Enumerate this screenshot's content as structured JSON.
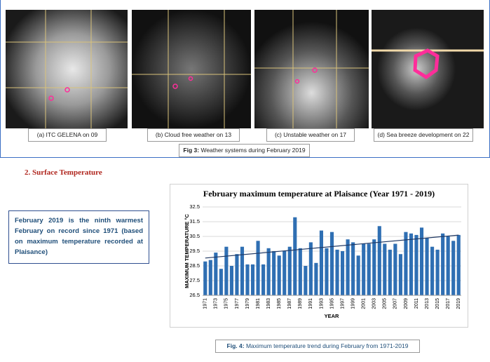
{
  "figure3": {
    "panels": [
      {
        "caption": "(a) ITC GELENA on 09"
      },
      {
        "caption": "(b) Cloud free weather on 13"
      },
      {
        "caption": "(c) Unstable weather on 17"
      },
      {
        "caption": "(d) Sea breeze development on 22"
      }
    ],
    "label": "Fig 3:",
    "caption": "Weather systems during February 2019"
  },
  "section": {
    "heading": "2. Surface Temperature"
  },
  "callout": {
    "text": "February 2019 is the ninth warmest February on record since 1971 (based on maximum temperature recorded at Plaisance)"
  },
  "chart_data": {
    "type": "bar",
    "title": "February maximum temperature at Plaisance (Year 1971 - 2019)",
    "x_label": "YEAR",
    "y_label": "MAXIMUM TEMPERATURE °C",
    "color": "#2f6fb3",
    "trendline": true,
    "trend_color": "#1f3864",
    "categories": [
      "1971",
      null,
      "1973",
      null,
      "1975",
      null,
      "1977",
      null,
      "1979",
      null,
      "1981",
      null,
      "1983",
      null,
      "1985",
      null,
      "1987",
      null,
      "1989",
      null,
      "1991",
      null,
      "1993",
      null,
      "1995",
      null,
      "1997",
      null,
      "1999",
      null,
      "2001",
      null,
      "2003",
      null,
      "2005",
      null,
      "2007",
      null,
      "2009",
      null,
      "2011",
      null,
      "2013",
      null,
      "2015",
      null,
      "2017",
      null,
      "2019"
    ],
    "values": [
      28.8,
      28.9,
      29.4,
      28.3,
      29.8,
      28.5,
      29.3,
      29.8,
      28.6,
      28.6,
      30.2,
      28.6,
      29.7,
      29.5,
      29.2,
      29.5,
      29.8,
      31.8,
      29.7,
      28.5,
      30.1,
      28.7,
      30.9,
      29.7,
      30.8,
      29.6,
      29.5,
      30.3,
      30.1,
      29.2,
      30.0,
      30.0,
      30.3,
      31.2,
      30.0,
      29.6,
      30.0,
      29.3,
      30.8,
      30.7,
      30.6,
      31.1,
      30.4,
      29.8,
      29.6,
      30.7,
      30.5,
      30.2,
      30.6
    ],
    "ylim": [
      26.5,
      32.5
    ],
    "yticks": [
      26.5,
      27.5,
      28.5,
      29.5,
      30.5,
      31.5,
      32.5
    ],
    "grid": true
  },
  "figure4": {
    "label": "Fig. 4:",
    "caption": "Maximum temperature trend during February from 1971-2019"
  }
}
